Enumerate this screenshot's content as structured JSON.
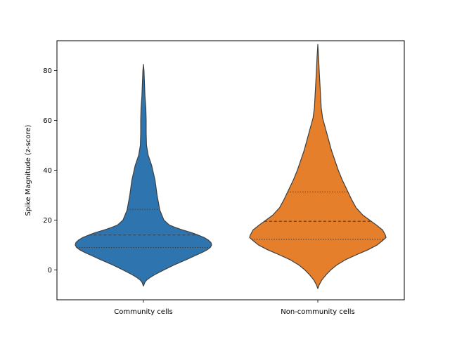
{
  "chart_data": {
    "type": "violin",
    "categories": [
      "Community cells",
      "Non-community cells"
    ],
    "ylabel": "Spike Magnitude (z-score)",
    "xlabel": "",
    "ylim": [
      -12,
      92
    ],
    "yticks": [
      0,
      20,
      40,
      60,
      80
    ],
    "grid": false,
    "series": [
      {
        "color": "#2e75b0",
        "min": -6.5,
        "max": 82.5,
        "quartiles": [
          9,
          14,
          24.3
        ],
        "density": [
          [
            -6.5,
            0.0
          ],
          [
            -5,
            0.02
          ],
          [
            -4,
            0.05
          ],
          [
            -3,
            0.1
          ],
          [
            -2,
            0.16
          ],
          [
            -1,
            0.23
          ],
          [
            0,
            0.3
          ],
          [
            2,
            0.45
          ],
          [
            4,
            0.62
          ],
          [
            6,
            0.78
          ],
          [
            7,
            0.86
          ],
          [
            8,
            0.93
          ],
          [
            9,
            0.98
          ],
          [
            10,
            1.0
          ],
          [
            11,
            0.99
          ],
          [
            12,
            0.95
          ],
          [
            13,
            0.89
          ],
          [
            14,
            0.8
          ],
          [
            15,
            0.7
          ],
          [
            16,
            0.58
          ],
          [
            17,
            0.47
          ],
          [
            18,
            0.38
          ],
          [
            20,
            0.3
          ],
          [
            24,
            0.24
          ],
          [
            30,
            0.2
          ],
          [
            36,
            0.17
          ],
          [
            42,
            0.12
          ],
          [
            46,
            0.07
          ],
          [
            50,
            0.045
          ],
          [
            55,
            0.04
          ],
          [
            60,
            0.04
          ],
          [
            65,
            0.035
          ],
          [
            70,
            0.022
          ],
          [
            75,
            0.015
          ],
          [
            80,
            0.008
          ],
          [
            82.5,
            0.0
          ]
        ]
      },
      {
        "color": "#e57f2b",
        "min": -7.5,
        "max": 90.5,
        "quartiles": [
          12.3,
          19.5,
          31.3
        ],
        "density": [
          [
            -7.5,
            0.0
          ],
          [
            -6,
            0.02
          ],
          [
            -4,
            0.06
          ],
          [
            -2,
            0.12
          ],
          [
            0,
            0.19
          ],
          [
            2,
            0.28
          ],
          [
            4,
            0.4
          ],
          [
            6,
            0.56
          ],
          [
            8,
            0.73
          ],
          [
            10,
            0.87
          ],
          [
            12,
            0.96
          ],
          [
            13,
            1.0
          ],
          [
            14,
            0.99
          ],
          [
            16,
            0.95
          ],
          [
            18,
            0.86
          ],
          [
            20,
            0.76
          ],
          [
            22,
            0.66
          ],
          [
            25,
            0.56
          ],
          [
            28,
            0.5
          ],
          [
            32,
            0.43
          ],
          [
            36,
            0.36
          ],
          [
            40,
            0.3
          ],
          [
            44,
            0.25
          ],
          [
            48,
            0.2
          ],
          [
            52,
            0.16
          ],
          [
            55,
            0.13
          ],
          [
            58,
            0.1
          ],
          [
            61,
            0.07
          ],
          [
            65,
            0.05
          ],
          [
            70,
            0.04
          ],
          [
            75,
            0.03
          ],
          [
            80,
            0.02
          ],
          [
            85,
            0.012
          ],
          [
            90.5,
            0.0
          ]
        ]
      }
    ]
  }
}
